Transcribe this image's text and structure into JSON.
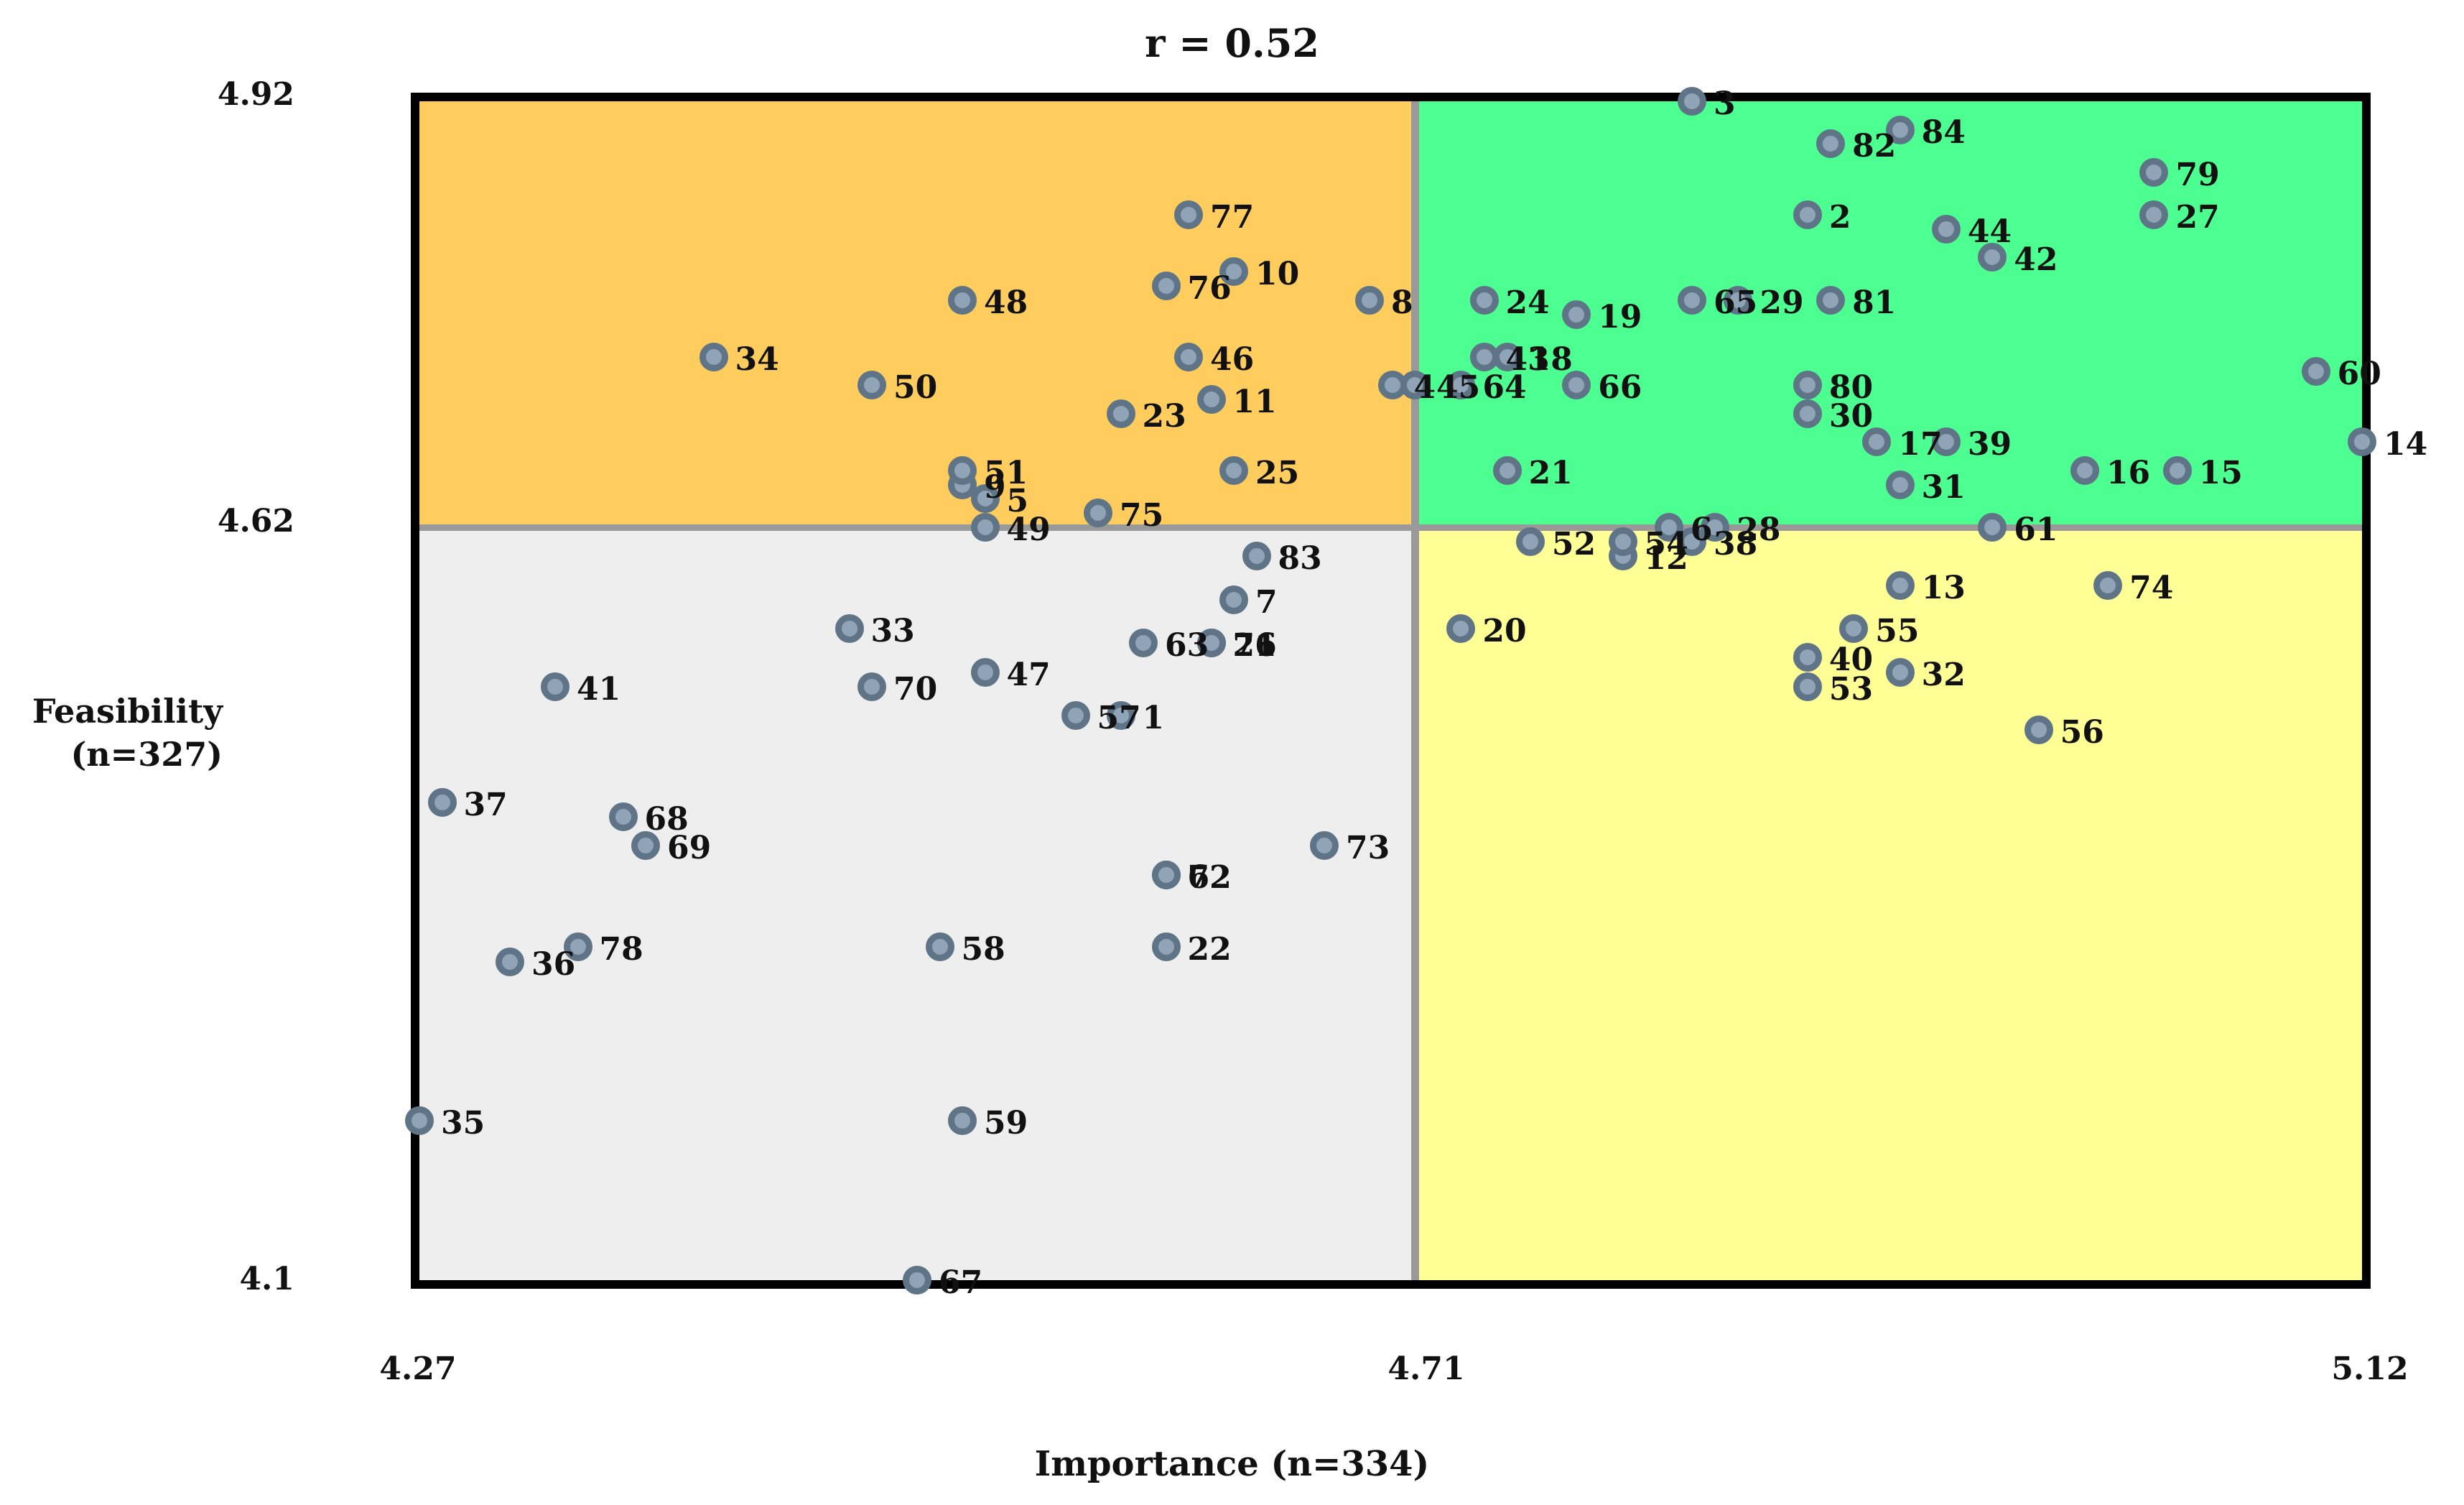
{
  "chart_data": {
    "type": "scatter",
    "title": "r = 0.52",
    "xlabel": "Importance (n=334)",
    "ylabel": "Feasibility (n=327)",
    "xlim": [
      4.27,
      5.12
    ],
    "ylim": [
      4.1,
      4.92
    ],
    "x_ticks": [
      "4.27",
      "4.71",
      "5.12"
    ],
    "y_ticks": [
      "4.92",
      "4.62",
      "4.1"
    ],
    "x_divider": 4.71,
    "y_divider": 4.62,
    "grid": false,
    "legend": null,
    "quadrants": {
      "top_left": "#ffcc5e",
      "top_right": "#4cff90",
      "bottom_left": "#eeeeee",
      "bottom_right": "#ffff96"
    },
    "marker_colors": {
      "fill": "#8fa4b6",
      "edge": "#5f7587"
    },
    "points": [
      {
        "label": "1",
        "x": 4.58,
        "y": 4.49
      },
      {
        "label": "2",
        "x": 4.88,
        "y": 4.84
      },
      {
        "label": "3",
        "x": 4.83,
        "y": 4.92
      },
      {
        "label": "4",
        "x": 4.7,
        "y": 4.72
      },
      {
        "label": "5",
        "x": 4.52,
        "y": 4.64
      },
      {
        "label": "6",
        "x": 4.82,
        "y": 4.62
      },
      {
        "label": "7",
        "x": 4.63,
        "y": 4.57
      },
      {
        "label": "8",
        "x": 4.69,
        "y": 4.78
      },
      {
        "label": "9",
        "x": 4.51,
        "y": 4.65
      },
      {
        "label": "10",
        "x": 4.63,
        "y": 4.8
      },
      {
        "label": "11",
        "x": 4.62,
        "y": 4.71
      },
      {
        "label": "12",
        "x": 4.8,
        "y": 4.6
      },
      {
        "label": "13",
        "x": 4.92,
        "y": 4.58
      },
      {
        "label": "14",
        "x": 5.12,
        "y": 4.68
      },
      {
        "label": "15",
        "x": 5.04,
        "y": 4.66
      },
      {
        "label": "16",
        "x": 5.0,
        "y": 4.66
      },
      {
        "label": "17",
        "x": 4.91,
        "y": 4.68
      },
      {
        "label": "18",
        "x": 4.75,
        "y": 4.74
      },
      {
        "label": "19",
        "x": 4.78,
        "y": 4.77
      },
      {
        "label": "20",
        "x": 4.73,
        "y": 4.55
      },
      {
        "label": "21",
        "x": 4.75,
        "y": 4.66
      },
      {
        "label": "22",
        "x": 4.6,
        "y": 4.33
      },
      {
        "label": "23",
        "x": 4.58,
        "y": 4.7
      },
      {
        "label": "24",
        "x": 4.74,
        "y": 4.78
      },
      {
        "label": "25",
        "x": 4.63,
        "y": 4.66
      },
      {
        "label": "26",
        "x": 4.62,
        "y": 4.54
      },
      {
        "label": "27",
        "x": 5.03,
        "y": 4.84
      },
      {
        "label": "28",
        "x": 4.84,
        "y": 4.62
      },
      {
        "label": "29",
        "x": 4.85,
        "y": 4.78
      },
      {
        "label": "30",
        "x": 4.88,
        "y": 4.7
      },
      {
        "label": "31",
        "x": 4.92,
        "y": 4.65
      },
      {
        "label": "32",
        "x": 4.92,
        "y": 4.52
      },
      {
        "label": "33",
        "x": 4.46,
        "y": 4.55
      },
      {
        "label": "34",
        "x": 4.4,
        "y": 4.74
      },
      {
        "label": "35",
        "x": 4.27,
        "y": 4.21
      },
      {
        "label": "36",
        "x": 4.31,
        "y": 4.32
      },
      {
        "label": "37",
        "x": 4.28,
        "y": 4.43
      },
      {
        "label": "38",
        "x": 4.83,
        "y": 4.61
      },
      {
        "label": "39",
        "x": 4.94,
        "y": 4.68
      },
      {
        "label": "40",
        "x": 4.88,
        "y": 4.53
      },
      {
        "label": "41",
        "x": 4.33,
        "y": 4.51
      },
      {
        "label": "42",
        "x": 4.96,
        "y": 4.81
      },
      {
        "label": "43",
        "x": 4.74,
        "y": 4.74
      },
      {
        "label": "44",
        "x": 4.94,
        "y": 4.83
      },
      {
        "label": "45",
        "x": 4.71,
        "y": 4.72
      },
      {
        "label": "46",
        "x": 4.61,
        "y": 4.74
      },
      {
        "label": "47",
        "x": 4.52,
        "y": 4.52
      },
      {
        "label": "48",
        "x": 4.51,
        "y": 4.78
      },
      {
        "label": "49",
        "x": 4.52,
        "y": 4.62
      },
      {
        "label": "50",
        "x": 4.47,
        "y": 4.72
      },
      {
        "label": "51",
        "x": 4.51,
        "y": 4.66
      },
      {
        "label": "52",
        "x": 4.76,
        "y": 4.61
      },
      {
        "label": "53",
        "x": 4.88,
        "y": 4.51
      },
      {
        "label": "54",
        "x": 4.8,
        "y": 4.61
      },
      {
        "label": "55",
        "x": 4.9,
        "y": 4.55
      },
      {
        "label": "56",
        "x": 4.98,
        "y": 4.48
      },
      {
        "label": "57",
        "x": 4.56,
        "y": 4.49
      },
      {
        "label": "58",
        "x": 4.5,
        "y": 4.33
      },
      {
        "label": "59",
        "x": 4.51,
        "y": 4.21
      },
      {
        "label": "60",
        "x": 5.1,
        "y": 4.73
      },
      {
        "label": "61",
        "x": 4.96,
        "y": 4.62
      },
      {
        "label": "62",
        "x": 4.6,
        "y": 4.38
      },
      {
        "label": "63",
        "x": 4.59,
        "y": 4.54
      },
      {
        "label": "64",
        "x": 4.73,
        "y": 4.72
      },
      {
        "label": "65",
        "x": 4.83,
        "y": 4.78
      },
      {
        "label": "66",
        "x": 4.78,
        "y": 4.72
      },
      {
        "label": "67",
        "x": 4.49,
        "y": 4.1
      },
      {
        "label": "68",
        "x": 4.36,
        "y": 4.42
      },
      {
        "label": "69",
        "x": 4.37,
        "y": 4.4
      },
      {
        "label": "70",
        "x": 4.47,
        "y": 4.51
      },
      {
        "label": "71",
        "x": 4.62,
        "y": 4.54
      },
      {
        "label": "72",
        "x": 4.6,
        "y": 4.38
      },
      {
        "label": "73",
        "x": 4.67,
        "y": 4.4
      },
      {
        "label": "74",
        "x": 5.01,
        "y": 4.58
      },
      {
        "label": "75",
        "x": 4.57,
        "y": 4.63
      },
      {
        "label": "76",
        "x": 4.6,
        "y": 4.79
      },
      {
        "label": "77",
        "x": 4.61,
        "y": 4.84
      },
      {
        "label": "78",
        "x": 4.34,
        "y": 4.33
      },
      {
        "label": "79",
        "x": 5.03,
        "y": 4.87
      },
      {
        "label": "80",
        "x": 4.88,
        "y": 4.72
      },
      {
        "label": "81",
        "x": 4.89,
        "y": 4.78
      },
      {
        "label": "82",
        "x": 4.89,
        "y": 4.89
      },
      {
        "label": "83",
        "x": 4.64,
        "y": 4.6
      },
      {
        "label": "84",
        "x": 4.92,
        "y": 4.9
      }
    ]
  },
  "axis": {
    "y_top": "4.92",
    "y_mid": "4.62",
    "y_bottom": "4.1",
    "x_left": "4.27",
    "x_mid": "4.71",
    "x_right": "5.12",
    "y_label_line1": "Feasibility",
    "y_label_line2": "(n=327)",
    "x_label": "Importance (n=334)"
  },
  "title": "r = 0.52"
}
